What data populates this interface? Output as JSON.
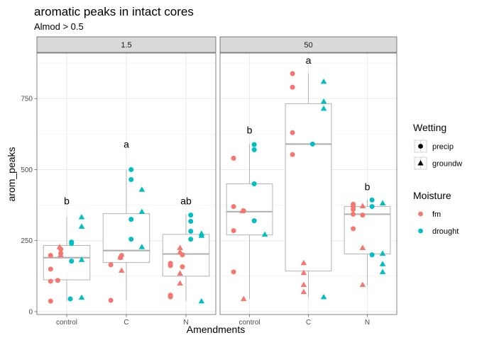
{
  "chart_data": {
    "type": "boxplot-jitter",
    "title": "aromatic peaks in intact cores",
    "subtitle": "Almod > 0.5",
    "xlabel": "Amendments",
    "ylabel": "arom_peaks",
    "categories": [
      "control",
      "C",
      "N"
    ],
    "ylim": [
      -10,
      910
    ],
    "yticks": [
      0,
      250,
      500,
      750
    ],
    "grid": true,
    "facets": [
      {
        "label": "1.5",
        "letters": [
          {
            "category": "control",
            "text": "b",
            "y": 390
          },
          {
            "category": "C",
            "text": "a",
            "y": 590
          },
          {
            "category": "N",
            "text": "ab",
            "y": 390
          }
        ],
        "boxes": [
          {
            "category": "control",
            "min": 37,
            "q1": 112,
            "median": 190,
            "q3": 233,
            "max": 335
          },
          {
            "category": "C",
            "min": 40,
            "q1": 173,
            "median": 215,
            "q3": 345,
            "max": 500
          },
          {
            "category": "N",
            "min": 37,
            "q1": 125,
            "median": 203,
            "q3": 272,
            "max": 342
          }
        ],
        "points": [
          {
            "category": "control",
            "dx": -0.27,
            "y": 37,
            "moisture": "fm",
            "wetting": "precip"
          },
          {
            "category": "control",
            "dx": -0.27,
            "y": 107,
            "moisture": "fm",
            "wetting": "precip"
          },
          {
            "category": "control",
            "dx": -0.15,
            "y": 110,
            "moisture": "fm",
            "wetting": "precip"
          },
          {
            "category": "control",
            "dx": -0.27,
            "y": 150,
            "moisture": "fm",
            "wetting": "precip"
          },
          {
            "category": "control",
            "dx": -0.27,
            "y": 198,
            "moisture": "fm",
            "wetting": "precip"
          },
          {
            "category": "control",
            "dx": -0.1,
            "y": 205,
            "moisture": "fm",
            "wetting": "precip"
          },
          {
            "category": "control",
            "dx": -0.1,
            "y": 220,
            "moisture": "fm",
            "wetting": "precip"
          },
          {
            "category": "control",
            "dx": -0.12,
            "y": 228,
            "moisture": "fm",
            "wetting": "groundw"
          },
          {
            "category": "control",
            "dx": -0.1,
            "y": 200,
            "moisture": "fm",
            "wetting": "groundw"
          },
          {
            "category": "control",
            "dx": 0.06,
            "y": 45,
            "moisture": "drought",
            "wetting": "precip"
          },
          {
            "category": "control",
            "dx": 0.08,
            "y": 178,
            "moisture": "drought",
            "wetting": "precip"
          },
          {
            "category": "control",
            "dx": 0.08,
            "y": 240,
            "moisture": "drought",
            "wetting": "precip"
          },
          {
            "category": "control",
            "dx": 0.08,
            "y": 245,
            "moisture": "drought",
            "wetting": "precip"
          },
          {
            "category": "control",
            "dx": 0.25,
            "y": 50,
            "moisture": "drought",
            "wetting": "groundw"
          },
          {
            "category": "control",
            "dx": 0.25,
            "y": 183,
            "moisture": "drought",
            "wetting": "groundw"
          },
          {
            "category": "control",
            "dx": 0.25,
            "y": 300,
            "moisture": "drought",
            "wetting": "groundw"
          },
          {
            "category": "control",
            "dx": 0.25,
            "y": 333,
            "moisture": "drought",
            "wetting": "groundw"
          },
          {
            "category": "C",
            "dx": -0.26,
            "y": 40,
            "moisture": "fm",
            "wetting": "precip"
          },
          {
            "category": "C",
            "dx": -0.26,
            "y": 165,
            "moisture": "fm",
            "wetting": "precip"
          },
          {
            "category": "C",
            "dx": -0.1,
            "y": 190,
            "moisture": "fm",
            "wetting": "precip"
          },
          {
            "category": "C",
            "dx": -0.08,
            "y": 198,
            "moisture": "fm",
            "wetting": "precip"
          },
          {
            "category": "C",
            "dx": -0.08,
            "y": 145,
            "moisture": "fm",
            "wetting": "groundw"
          },
          {
            "category": "C",
            "dx": -0.1,
            "y": 192,
            "moisture": "fm",
            "wetting": "groundw"
          },
          {
            "category": "C",
            "dx": 0.08,
            "y": 255,
            "moisture": "drought",
            "wetting": "precip"
          },
          {
            "category": "C",
            "dx": 0.08,
            "y": 325,
            "moisture": "drought",
            "wetting": "precip"
          },
          {
            "category": "C",
            "dx": 0.08,
            "y": 465,
            "moisture": "drought",
            "wetting": "precip"
          },
          {
            "category": "C",
            "dx": 0.08,
            "y": 500,
            "moisture": "drought",
            "wetting": "precip"
          },
          {
            "category": "C",
            "dx": 0.26,
            "y": 228,
            "moisture": "drought",
            "wetting": "groundw"
          },
          {
            "category": "C",
            "dx": 0.26,
            "y": 352,
            "moisture": "drought",
            "wetting": "groundw"
          },
          {
            "category": "C",
            "dx": 0.26,
            "y": 430,
            "moisture": "drought",
            "wetting": "groundw"
          },
          {
            "category": "N",
            "dx": -0.26,
            "y": 52,
            "moisture": "fm",
            "wetting": "precip"
          },
          {
            "category": "N",
            "dx": -0.26,
            "y": 58,
            "moisture": "fm",
            "wetting": "precip"
          },
          {
            "category": "N",
            "dx": -0.26,
            "y": 162,
            "moisture": "fm",
            "wetting": "precip"
          },
          {
            "category": "N",
            "dx": -0.26,
            "y": 170,
            "moisture": "fm",
            "wetting": "precip"
          },
          {
            "category": "N",
            "dx": -0.06,
            "y": 158,
            "moisture": "fm",
            "wetting": "precip"
          },
          {
            "category": "N",
            "dx": -0.06,
            "y": 200,
            "moisture": "fm",
            "wetting": "precip"
          },
          {
            "category": "N",
            "dx": -0.1,
            "y": 100,
            "moisture": "fm",
            "wetting": "groundw"
          },
          {
            "category": "N",
            "dx": -0.1,
            "y": 135,
            "moisture": "fm",
            "wetting": "groundw"
          },
          {
            "category": "N",
            "dx": -0.1,
            "y": 210,
            "moisture": "fm",
            "wetting": "groundw"
          },
          {
            "category": "N",
            "dx": -0.1,
            "y": 225,
            "moisture": "fm",
            "wetting": "groundw"
          },
          {
            "category": "N",
            "dx": 0.08,
            "y": 255,
            "moisture": "drought",
            "wetting": "precip"
          },
          {
            "category": "N",
            "dx": 0.08,
            "y": 283,
            "moisture": "drought",
            "wetting": "precip"
          },
          {
            "category": "N",
            "dx": 0.08,
            "y": 318,
            "moisture": "drought",
            "wetting": "precip"
          },
          {
            "category": "N",
            "dx": 0.08,
            "y": 340,
            "moisture": "drought",
            "wetting": "precip"
          },
          {
            "category": "N",
            "dx": 0.26,
            "y": 37,
            "moisture": "drought",
            "wetting": "groundw"
          },
          {
            "category": "N",
            "dx": 0.26,
            "y": 268,
            "moisture": "drought",
            "wetting": "groundw"
          },
          {
            "category": "N",
            "dx": 0.26,
            "y": 275,
            "moisture": "drought",
            "wetting": "groundw"
          }
        ]
      },
      {
        "label": "50",
        "letters": [
          {
            "category": "control",
            "text": "b",
            "y": 640
          },
          {
            "category": "C",
            "text": "a",
            "y": 885
          },
          {
            "category": "N",
            "text": "b",
            "y": 440
          }
        ],
        "boxes": [
          {
            "category": "control",
            "min": 45,
            "q1": 270,
            "median": 352,
            "q3": 450,
            "max": 590
          },
          {
            "category": "C",
            "min": 50,
            "q1": 143,
            "median": 590,
            "q3": 732,
            "max": 840
          },
          {
            "category": "N",
            "min": 92,
            "q1": 203,
            "median": 343,
            "q3": 370,
            "max": 395
          }
        ],
        "points": [
          {
            "category": "control",
            "dx": -0.27,
            "y": 140,
            "moisture": "fm",
            "wetting": "precip"
          },
          {
            "category": "control",
            "dx": -0.27,
            "y": 285,
            "moisture": "fm",
            "wetting": "precip"
          },
          {
            "category": "control",
            "dx": -0.27,
            "y": 370,
            "moisture": "fm",
            "wetting": "precip"
          },
          {
            "category": "control",
            "dx": -0.27,
            "y": 540,
            "moisture": "fm",
            "wetting": "precip"
          },
          {
            "category": "control",
            "dx": -0.1,
            "y": 355,
            "moisture": "fm",
            "wetting": "precip"
          },
          {
            "category": "control",
            "dx": -0.1,
            "y": 45,
            "moisture": "fm",
            "wetting": "groundw"
          },
          {
            "category": "control",
            "dx": -0.12,
            "y": 355,
            "moisture": "fm",
            "wetting": "groundw"
          },
          {
            "category": "control",
            "dx": 0.08,
            "y": 320,
            "moisture": "drought",
            "wetting": "precip"
          },
          {
            "category": "control",
            "dx": 0.08,
            "y": 450,
            "moisture": "drought",
            "wetting": "precip"
          },
          {
            "category": "control",
            "dx": 0.08,
            "y": 570,
            "moisture": "drought",
            "wetting": "precip"
          },
          {
            "category": "control",
            "dx": 0.08,
            "y": 588,
            "moisture": "drought",
            "wetting": "precip"
          },
          {
            "category": "control",
            "dx": 0.26,
            "y": 272,
            "moisture": "drought",
            "wetting": "groundw"
          },
          {
            "category": "C",
            "dx": -0.27,
            "y": 553,
            "moisture": "fm",
            "wetting": "precip"
          },
          {
            "category": "C",
            "dx": -0.27,
            "y": 630,
            "moisture": "fm",
            "wetting": "precip"
          },
          {
            "category": "C",
            "dx": -0.27,
            "y": 790,
            "moisture": "fm",
            "wetting": "precip"
          },
          {
            "category": "C",
            "dx": -0.27,
            "y": 838,
            "moisture": "fm",
            "wetting": "precip"
          },
          {
            "category": "C",
            "dx": -0.08,
            "y": 70,
            "moisture": "fm",
            "wetting": "groundw"
          },
          {
            "category": "C",
            "dx": -0.08,
            "y": 95,
            "moisture": "fm",
            "wetting": "groundw"
          },
          {
            "category": "C",
            "dx": -0.08,
            "y": 137,
            "moisture": "fm",
            "wetting": "groundw"
          },
          {
            "category": "C",
            "dx": -0.08,
            "y": 172,
            "moisture": "fm",
            "wetting": "groundw"
          },
          {
            "category": "C",
            "dx": 0.07,
            "y": 590,
            "moisture": "drought",
            "wetting": "precip"
          },
          {
            "category": "C",
            "dx": 0.26,
            "y": 52,
            "moisture": "drought",
            "wetting": "groundw"
          },
          {
            "category": "C",
            "dx": 0.26,
            "y": 715,
            "moisture": "drought",
            "wetting": "groundw"
          },
          {
            "category": "C",
            "dx": 0.26,
            "y": 740,
            "moisture": "drought",
            "wetting": "groundw"
          },
          {
            "category": "C",
            "dx": 0.26,
            "y": 810,
            "moisture": "drought",
            "wetting": "groundw"
          },
          {
            "category": "N",
            "dx": -0.24,
            "y": 292,
            "moisture": "fm",
            "wetting": "precip"
          },
          {
            "category": "N",
            "dx": -0.24,
            "y": 343,
            "moisture": "fm",
            "wetting": "precip"
          },
          {
            "category": "N",
            "dx": -0.24,
            "y": 360,
            "moisture": "fm",
            "wetting": "precip"
          },
          {
            "category": "N",
            "dx": -0.24,
            "y": 370,
            "moisture": "fm",
            "wetting": "precip"
          },
          {
            "category": "N",
            "dx": -0.24,
            "y": 378,
            "moisture": "fm",
            "wetting": "precip"
          },
          {
            "category": "N",
            "dx": -0.08,
            "y": 340,
            "moisture": "fm",
            "wetting": "precip"
          },
          {
            "category": "N",
            "dx": -0.08,
            "y": 95,
            "moisture": "fm",
            "wetting": "groundw"
          },
          {
            "category": "N",
            "dx": -0.08,
            "y": 225,
            "moisture": "fm",
            "wetting": "groundw"
          },
          {
            "category": "N",
            "dx": -0.08,
            "y": 372,
            "moisture": "fm",
            "wetting": "groundw"
          },
          {
            "category": "N",
            "dx": 0.08,
            "y": 200,
            "moisture": "drought",
            "wetting": "precip"
          },
          {
            "category": "N",
            "dx": 0.08,
            "y": 370,
            "moisture": "drought",
            "wetting": "precip"
          },
          {
            "category": "N",
            "dx": 0.08,
            "y": 393,
            "moisture": "drought",
            "wetting": "precip"
          },
          {
            "category": "N",
            "dx": 0.26,
            "y": 140,
            "moisture": "drought",
            "wetting": "groundw"
          },
          {
            "category": "N",
            "dx": 0.26,
            "y": 168,
            "moisture": "drought",
            "wetting": "groundw"
          },
          {
            "category": "N",
            "dx": 0.26,
            "y": 205,
            "moisture": "drought",
            "wetting": "groundw"
          },
          {
            "category": "N",
            "dx": 0.26,
            "y": 382,
            "moisture": "drought",
            "wetting": "groundw"
          }
        ]
      }
    ],
    "legend": {
      "placement": "right",
      "wetting": {
        "title": "Wetting",
        "items": [
          {
            "label": "precip",
            "shape": "circle"
          },
          {
            "label": "groundw",
            "shape": "triangle"
          }
        ]
      },
      "moisture": {
        "title": "Moisture",
        "items": [
          {
            "label": "fm",
            "color": "#f8766d"
          },
          {
            "label": "drought",
            "color": "#00bfc4"
          }
        ]
      }
    },
    "colors": {
      "fm": "#f8766d",
      "drought": "#00bfc4",
      "box": "#b3b3b3",
      "median": "#b3b3b3",
      "strip": "#d9d9d9",
      "grid": "#ebebeb"
    }
  }
}
